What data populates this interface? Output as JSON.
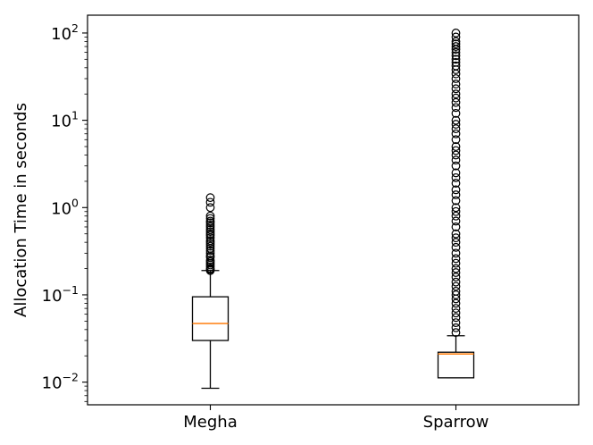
{
  "chart_data": {
    "type": "box",
    "title": "",
    "xlabel": "",
    "ylabel": "Allocation Time in seconds",
    "yscale": "log",
    "ylim": [
      0.0055,
      160
    ],
    "yticks": [
      0.01,
      0.1,
      1,
      10,
      100
    ],
    "ytick_labels": [
      {
        "base": "10",
        "exp": "−2"
      },
      {
        "base": "10",
        "exp": "−1"
      },
      {
        "base": "10",
        "exp": "0"
      },
      {
        "base": "10",
        "exp": "1"
      },
      {
        "base": "10",
        "exp": "2"
      }
    ],
    "categories": [
      "Megha",
      "Sparrow"
    ],
    "boxes": [
      {
        "name": "Megha",
        "whisker_low": 0.0085,
        "q1": 0.03,
        "median": 0.047,
        "q3": 0.095,
        "whisker_high": 0.19,
        "outliers": [
          0.19,
          0.195,
          0.2,
          0.21,
          0.22,
          0.23,
          0.24,
          0.25,
          0.27,
          0.28,
          0.3,
          0.32,
          0.34,
          0.36,
          0.38,
          0.4,
          0.42,
          0.45,
          0.48,
          0.5,
          0.53,
          0.56,
          0.6,
          0.63,
          0.67,
          0.7,
          0.75,
          0.8,
          1.0,
          1.15,
          1.3
        ]
      },
      {
        "name": "Sparrow",
        "whisker_low": 0.0112,
        "q1": 0.0112,
        "median": 0.021,
        "q3": 0.022,
        "whisker_high": 0.034,
        "outliers": [
          0.037,
          0.042,
          0.048,
          0.055,
          0.062,
          0.07,
          0.08,
          0.09,
          0.1,
          0.11,
          0.125,
          0.14,
          0.16,
          0.18,
          0.2,
          0.23,
          0.26,
          0.3,
          0.35,
          0.4,
          0.45,
          0.5,
          0.6,
          0.7,
          0.8,
          0.9,
          1.0,
          1.2,
          1.4,
          1.6,
          1.9,
          2.2,
          2.5,
          3.0,
          3.5,
          4.0,
          4.5,
          5.0,
          6.0,
          7.0,
          8.0,
          9.0,
          10,
          12,
          14,
          16,
          18,
          20,
          23,
          26,
          30,
          34,
          38,
          42,
          46,
          50,
          55,
          60,
          65,
          70,
          75,
          80,
          90,
          100
        ]
      }
    ],
    "colors": {
      "box": "#000000",
      "median": "#ff7f0e",
      "outlier": "#000000"
    },
    "grid": false,
    "legend": "none"
  }
}
